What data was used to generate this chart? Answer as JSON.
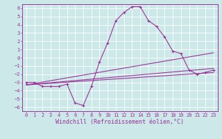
{
  "xlabel": "Windchill (Refroidissement éolien,°C)",
  "xlim": [
    -0.5,
    23.5
  ],
  "ylim": [
    -6.5,
    6.5
  ],
  "xticks": [
    0,
    1,
    2,
    3,
    4,
    5,
    6,
    7,
    8,
    9,
    10,
    11,
    12,
    13,
    14,
    15,
    16,
    17,
    18,
    19,
    20,
    21,
    22,
    23
  ],
  "yticks": [
    -6,
    -5,
    -4,
    -3,
    -2,
    -1,
    0,
    1,
    2,
    3,
    4,
    5,
    6
  ],
  "bg_color": "#cce8e8",
  "line_color": "#993399",
  "grid_color": "#ffffff",
  "main_series": {
    "x": [
      0,
      1,
      2,
      3,
      4,
      5,
      6,
      7,
      8,
      9,
      10,
      11,
      12,
      13,
      14,
      15,
      16,
      17,
      18,
      19,
      20,
      21,
      22,
      23
    ],
    "y": [
      -3.0,
      -3.0,
      -3.5,
      -3.5,
      -3.5,
      -3.2,
      -5.5,
      -5.8,
      -3.5,
      -0.5,
      1.8,
      4.5,
      5.5,
      6.2,
      6.2,
      4.5,
      3.8,
      2.5,
      0.8,
      0.5,
      -1.5,
      -2.0,
      -1.8,
      -1.5
    ]
  },
  "reg_lines": [
    {
      "x": [
        0,
        23
      ],
      "y": [
        -3.3,
        0.6
      ]
    },
    {
      "x": [
        0,
        23
      ],
      "y": [
        -3.3,
        -1.3
      ]
    },
    {
      "x": [
        0,
        23
      ],
      "y": [
        -3.3,
        -1.8
      ]
    }
  ],
  "font_family": "monospace",
  "tick_fontsize": 5.0,
  "xlabel_fontsize": 6.0
}
